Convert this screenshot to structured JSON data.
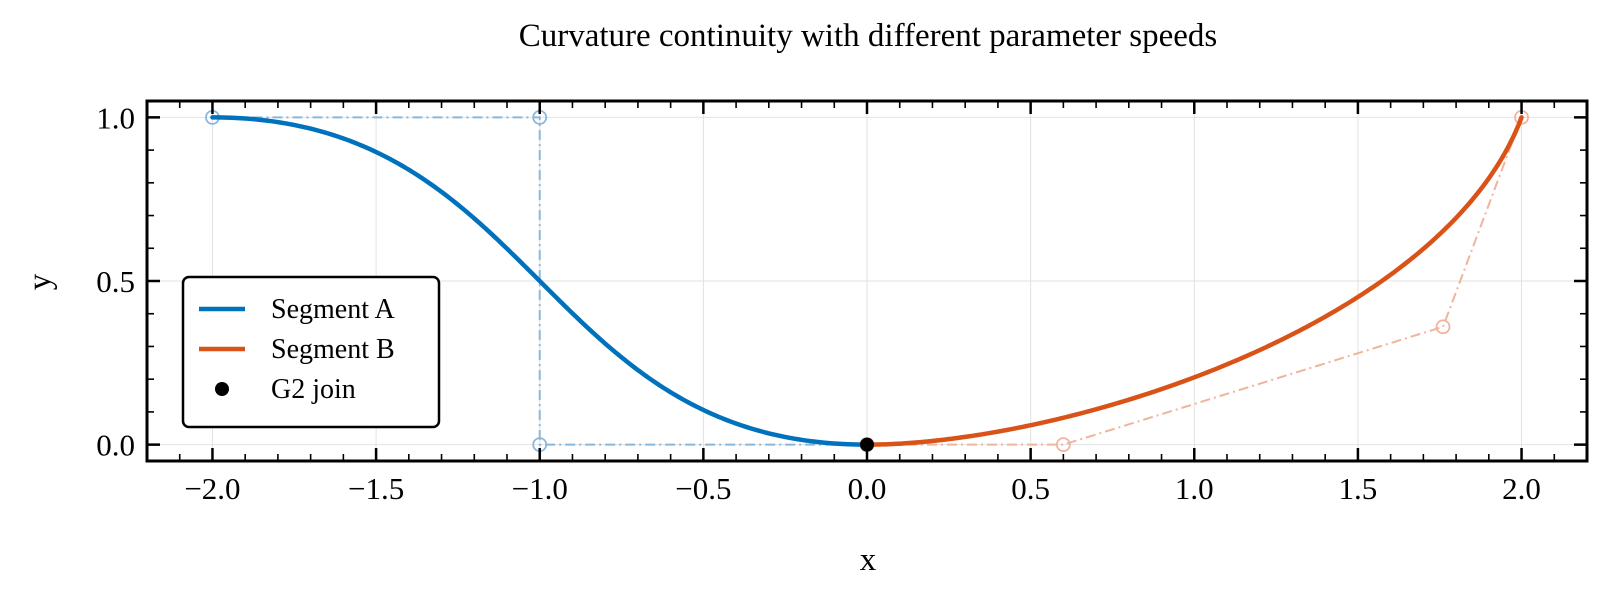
{
  "chart_data": {
    "type": "line",
    "title": "Curvature continuity with different parameter speeds",
    "xlabel": "x",
    "ylabel": "y",
    "xlim": [
      -2.2,
      2.2
    ],
    "ylim": [
      -0.05,
      1.05
    ],
    "xticks": [
      -2.0,
      -1.5,
      -1.0,
      -0.5,
      0.0,
      0.5,
      1.0,
      1.5,
      2.0
    ],
    "xtick_labels": [
      "−2.0",
      "−1.5",
      "−1.0",
      "−0.5",
      "0.0",
      "0.5",
      "1.0",
      "1.5",
      "2.0"
    ],
    "yticks": [
      0.0,
      0.5,
      1.0
    ],
    "ytick_labels": [
      "0.0",
      "0.5",
      "1.0"
    ],
    "grid": true,
    "legend_position": "center-left",
    "series": [
      {
        "name": "Segment A",
        "kind": "bezier",
        "color": "#0072bd",
        "control_points": [
          [
            -2.0,
            1.0
          ],
          [
            -1.0,
            1.0
          ],
          [
            -1.0,
            0.0
          ],
          [
            0.0,
            0.0
          ]
        ],
        "control_color": "#8ab8dc"
      },
      {
        "name": "Segment B",
        "kind": "bezier",
        "color": "#d95319",
        "control_points": [
          [
            0.0,
            0.0
          ],
          [
            0.6,
            0.0
          ],
          [
            1.76,
            0.36
          ],
          [
            2.0,
            1.0
          ]
        ],
        "control_color": "#f0b49c"
      },
      {
        "name": "G2 join",
        "kind": "point",
        "color": "#000000",
        "x": [
          0.0
        ],
        "y": [
          0.0
        ]
      }
    ],
    "legend": [
      {
        "label": "Segment A",
        "marker": "line",
        "color": "#0072bd"
      },
      {
        "label": "Segment B",
        "marker": "line",
        "color": "#d95319"
      },
      {
        "label": "G2 join",
        "marker": "dot",
        "color": "#000000"
      }
    ]
  }
}
